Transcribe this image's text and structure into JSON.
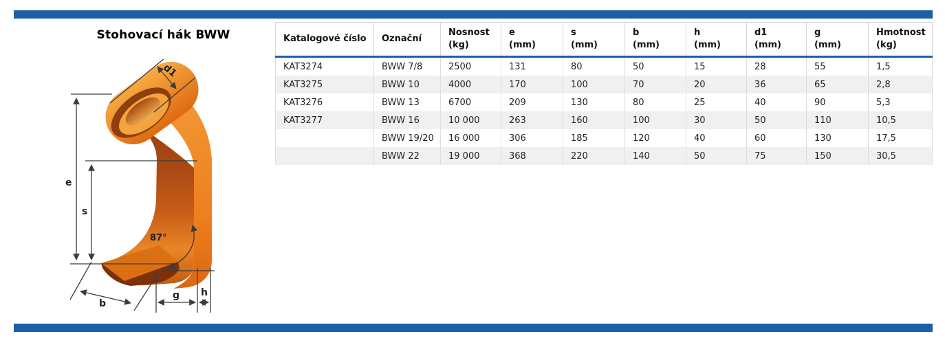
{
  "page": {
    "title": "Stohovací hák BWW"
  },
  "colors": {
    "accent_blue": "#1d5fa6",
    "hook_orange_bright": "#ef8120",
    "hook_orange_dark": "#a84818",
    "row_stripe": "#f0f0f0",
    "grid_line": "#dedede"
  },
  "figure": {
    "title": "Stohovací hák BWW",
    "illustration": "stacking-hook-3d",
    "angle_label": "87°",
    "dim": {
      "d1": "d1",
      "e": "e",
      "s": "s",
      "b": "b",
      "g": "g",
      "h": "h"
    }
  },
  "table": {
    "columns": [
      "Katalogové číslo",
      "Označní",
      "Nosnost\n(kg)",
      "e\n(mm)",
      "s\n(mm)",
      "b\n(mm)",
      "h\n(mm)",
      "d1\n(mm)",
      "g\n(mm)",
      "Hmotnost\n(kg)"
    ],
    "rows": [
      [
        "KAT3274",
        "BWW 7/8",
        "2500",
        "131",
        "80",
        "50",
        "15",
        "28",
        "55",
        "1,5"
      ],
      [
        "KAT3275",
        "BWW 10",
        "4000",
        "170",
        "100",
        "70",
        "20",
        "36",
        "65",
        "2,8"
      ],
      [
        "KAT3276",
        "BWW 13",
        "6700",
        "209",
        "130",
        "80",
        "25",
        "40",
        "90",
        "5,3"
      ],
      [
        "KAT3277",
        "BWW 16",
        "10 000",
        "263",
        "160",
        "100",
        "30",
        "50",
        "110",
        "10,5"
      ],
      [
        "",
        "BWW 19/20",
        "16 000",
        "306",
        "185",
        "120",
        "40",
        "60",
        "130",
        "17,5"
      ],
      [
        "",
        "BWW 22",
        "19 000",
        "368",
        "220",
        "140",
        "50",
        "75",
        "150",
        "30,5"
      ]
    ]
  }
}
